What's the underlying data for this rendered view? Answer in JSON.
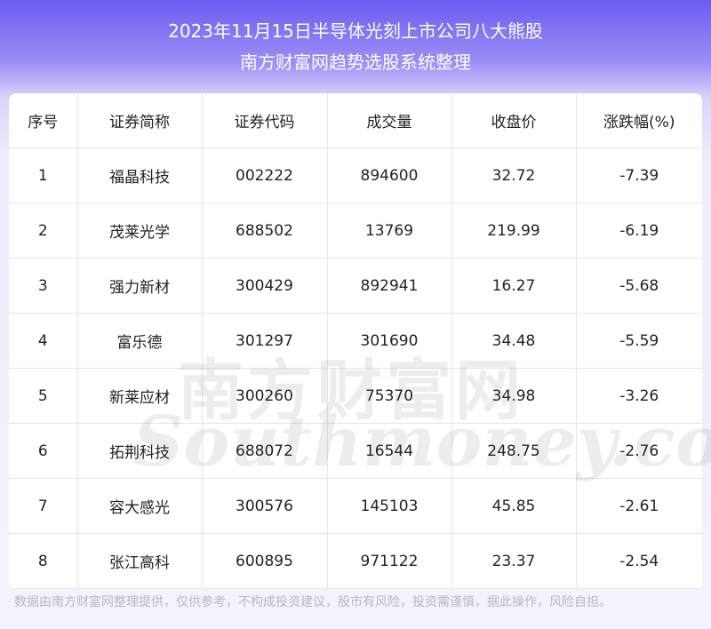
{
  "header": {
    "title": "2023年11月15日半导体光刻上市公司八大熊股",
    "subtitle": "南方财富网趋势选股系统整理"
  },
  "table": {
    "columns": [
      "序号",
      "证券简称",
      "证券代码",
      "成交量",
      "收盘价",
      "涨跌幅(%)"
    ],
    "rows": [
      [
        "1",
        "福晶科技",
        "002222",
        "894600",
        "32.72",
        "-7.39"
      ],
      [
        "2",
        "茂莱光学",
        "688502",
        "13769",
        "219.99",
        "-6.19"
      ],
      [
        "3",
        "强力新材",
        "300429",
        "892941",
        "16.27",
        "-5.68"
      ],
      [
        "4",
        "富乐德",
        "301297",
        "301690",
        "34.48",
        "-5.59"
      ],
      [
        "5",
        "新莱应材",
        "300260",
        "75370",
        "34.98",
        "-3.26"
      ],
      [
        "6",
        "拓荆科技",
        "688072",
        "16544",
        "248.75",
        "-2.76"
      ],
      [
        "7",
        "容大感光",
        "300576",
        "145103",
        "45.85",
        "-2.61"
      ],
      [
        "8",
        "张江高科",
        "600895",
        "971122",
        "23.37",
        "-2.54"
      ]
    ]
  },
  "watermark": {
    "cn": "南方财富网",
    "en": "Southmoney.com"
  },
  "footer": {
    "disclaimer": "数据由南方财富网整理提供，仅供参考，不构成投资建议，股市有风险，投资需谨慎，据此操作，风险自担。"
  },
  "colors": {
    "header_gradient_top": "#6c5cf0",
    "page_bg": "#f4f2fb",
    "card_bg": "#ffffff",
    "grid": "#e5e5ea",
    "footer_text": "#b9b6c6"
  }
}
